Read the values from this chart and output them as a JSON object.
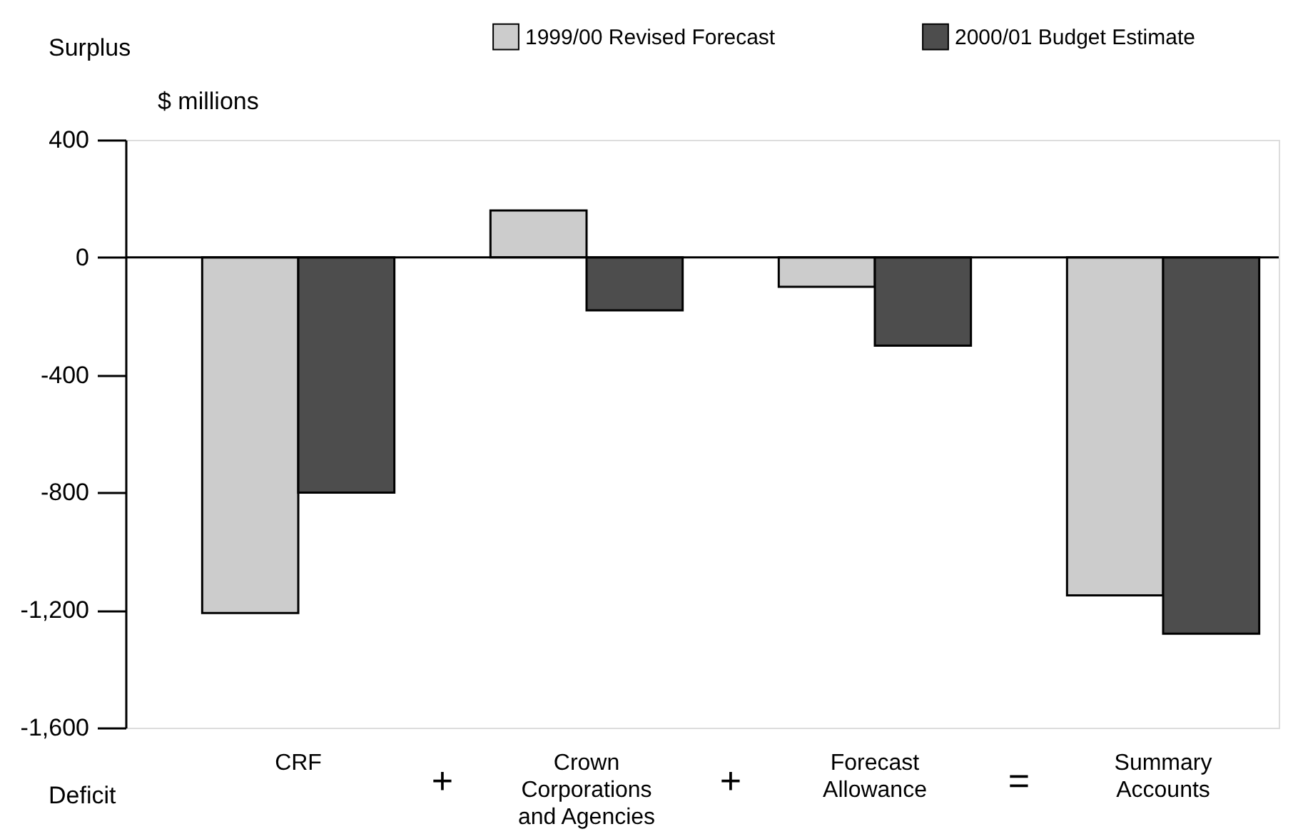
{
  "chart_data": {
    "type": "bar",
    "ylabel": "$ millions",
    "categories": [
      "CRF",
      "Crown\nCorporations\nand Agencies",
      "Forecast\nAllowance",
      "Summary\nAccounts"
    ],
    "series": [
      {
        "name": "1999/00 Revised Forecast",
        "color": "#cccccc",
        "values": [
          -1210,
          160,
          -100,
          -1150
        ]
      },
      {
        "name": "2000/01 Budget Estimate",
        "color": "#4d4d4d",
        "values": [
          -800,
          -180,
          -300,
          -1280
        ]
      }
    ],
    "ylim": [
      -1600,
      400
    ],
    "yticks": [
      400,
      0,
      -400,
      -800,
      {
        "value": -1200,
        "label": "-1,200"
      },
      {
        "value": -1600,
        "label": "-1,600"
      }
    ],
    "ref_lines": [
      {
        "axis": "y",
        "value": 0
      }
    ],
    "annotations": [
      "Surplus",
      "Deficit",
      "+",
      "+",
      "="
    ],
    "legend": "top right",
    "grid": false
  }
}
